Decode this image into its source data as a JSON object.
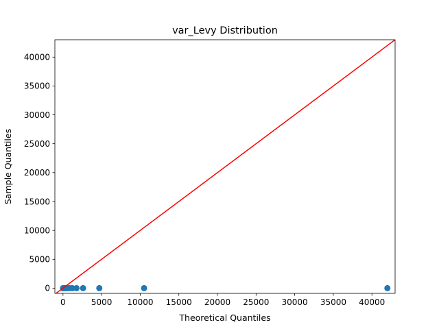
{
  "chart_data": {
    "type": "scatter",
    "title": "var_Levy Distribution",
    "xlabel": "Theoretical Quantiles",
    "ylabel": "Sample Quantiles",
    "xlim": [
      -1050,
      43000
    ],
    "ylim": [
      -900,
      43000
    ],
    "x_ticks": [
      0,
      5000,
      10000,
      15000,
      20000,
      25000,
      30000,
      35000,
      40000
    ],
    "y_ticks": [
      0,
      5000,
      10000,
      15000,
      20000,
      25000,
      30000,
      35000,
      40000
    ],
    "grid": false,
    "point_color": "#1f77b4",
    "line_color": "#ff0000",
    "points": [
      {
        "x": 0,
        "y": 0
      },
      {
        "x": 20,
        "y": 0
      },
      {
        "x": 50,
        "y": 0
      },
      {
        "x": 100,
        "y": 0
      },
      {
        "x": 180,
        "y": 0
      },
      {
        "x": 280,
        "y": 0
      },
      {
        "x": 420,
        "y": 0
      },
      {
        "x": 600,
        "y": 0
      },
      {
        "x": 850,
        "y": 0
      },
      {
        "x": 1200,
        "y": 0
      },
      {
        "x": 1750,
        "y": 0
      },
      {
        "x": 2600,
        "y": 0
      },
      {
        "x": 4700,
        "y": 0
      },
      {
        "x": 10500,
        "y": 0
      },
      {
        "x": 42000,
        "y": 0
      }
    ],
    "reference_line": {
      "x": [
        -1050,
        43000
      ],
      "y": [
        -1050,
        43000
      ]
    }
  }
}
